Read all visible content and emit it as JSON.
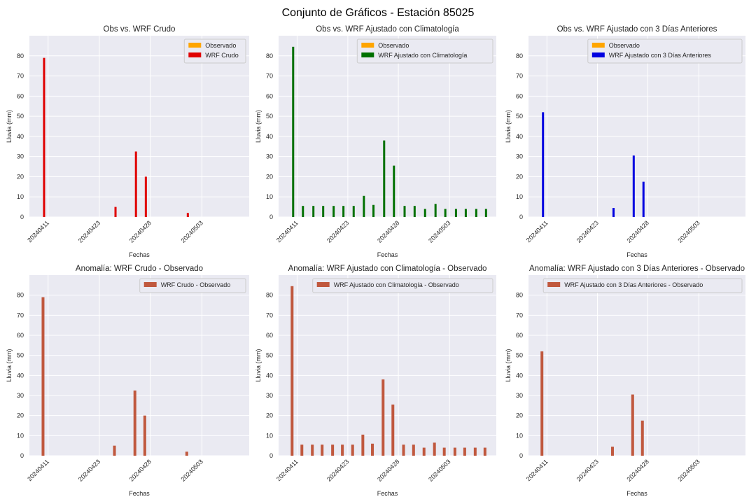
{
  "figure": {
    "title": "Conjunto de Gráficos - Estación 85025"
  },
  "colors": {
    "panel_bg": "#eaeaf2",
    "grid": "#ffffff",
    "observado": "#ffa500",
    "crudo": "#e00000",
    "climatologia": "#007000",
    "tres_dias": "#0000e0",
    "anomalia": "#c0583e",
    "text": "#262626"
  },
  "chart_data": [
    {
      "type": "bar",
      "title": "Obs vs. WRF Crudo",
      "xlabel": "Fechas",
      "ylabel": "Lluvia (mm)",
      "ylim": [
        0,
        90
      ],
      "yticks": [
        0,
        10,
        20,
        30,
        40,
        50,
        60,
        70,
        80
      ],
      "xticks": [
        "20240411",
        "20240423",
        "20240428",
        "20240503"
      ],
      "grid": true,
      "legend_position": "top-right",
      "series": [
        {
          "name": "Observado",
          "color": "#ffa500",
          "values": [
            0,
            0,
            0,
            0,
            0,
            0,
            0,
            0,
            0,
            0,
            0,
            0,
            0,
            0,
            0,
            0,
            0,
            0,
            0,
            0
          ]
        },
        {
          "name": "WRF Crudo",
          "color": "#e00000",
          "values": [
            79,
            0,
            0,
            0,
            0,
            0,
            0,
            5,
            0,
            32.5,
            20,
            0,
            0,
            0,
            2,
            0,
            0,
            0,
            0,
            0
          ]
        }
      ]
    },
    {
      "type": "bar",
      "title": "Obs vs. WRF Ajustado con Climatología",
      "xlabel": "Fechas",
      "ylabel": "Lluvia (mm)",
      "ylim": [
        0,
        90
      ],
      "yticks": [
        0,
        10,
        20,
        30,
        40,
        50,
        60,
        70,
        80
      ],
      "xticks": [
        "20240411",
        "20240423",
        "20240428",
        "20240503"
      ],
      "grid": true,
      "legend_position": "top-right",
      "series": [
        {
          "name": "Observado",
          "color": "#ffa500",
          "values": [
            0,
            0,
            0,
            0,
            0,
            0,
            0,
            0,
            0,
            0,
            0,
            0,
            0,
            0,
            0,
            0,
            0,
            0,
            0,
            0
          ]
        },
        {
          "name": "WRF Ajustado con Climatología",
          "color": "#007000",
          "values": [
            84.5,
            5.5,
            5.5,
            5.5,
            5.5,
            5.5,
            5.5,
            10.5,
            6,
            38,
            25.5,
            5.5,
            5.5,
            4,
            6.5,
            4,
            4,
            4,
            4,
            4
          ]
        }
      ]
    },
    {
      "type": "bar",
      "title": "Obs vs. WRF Ajustado con 3 Días Anteriores",
      "xlabel": "Fechas",
      "ylabel": "Lluvia (mm)",
      "ylim": [
        0,
        90
      ],
      "yticks": [
        0,
        10,
        20,
        30,
        40,
        50,
        60,
        70,
        80
      ],
      "xticks": [
        "20240411",
        "20240423",
        "20240428",
        "20240503"
      ],
      "grid": true,
      "legend_position": "top-right",
      "series": [
        {
          "name": "Observado",
          "color": "#ffa500",
          "values": [
            0,
            0,
            0,
            0,
            0,
            0,
            0,
            0,
            0,
            0,
            0,
            0,
            0,
            0,
            0,
            0,
            0,
            0,
            0,
            0
          ]
        },
        {
          "name": "WRF Ajustado con 3 Días Anteriores",
          "color": "#0000e0",
          "values": [
            52,
            0,
            0,
            0,
            0,
            0,
            0,
            4.5,
            0,
            30.5,
            17.5,
            0,
            0,
            0,
            0,
            0,
            0,
            0,
            0,
            0
          ]
        }
      ]
    },
    {
      "type": "bar",
      "title": "Anomalía: WRF Crudo - Observado",
      "xlabel": "Fechas",
      "ylabel": "Lluvia (mm)",
      "ylim": [
        0,
        90
      ],
      "yticks": [
        0,
        10,
        20,
        30,
        40,
        50,
        60,
        70,
        80
      ],
      "xticks": [
        "20240411",
        "20240423",
        "20240428",
        "20240503"
      ],
      "grid": true,
      "legend_position": "top-right",
      "series": [
        {
          "name": "WRF Crudo - Observado",
          "color": "#c0583e",
          "values": [
            79,
            0,
            0,
            0,
            0,
            0,
            0,
            5,
            0,
            32.5,
            20,
            0,
            0,
            0,
            2,
            0,
            0,
            0,
            0,
            0
          ]
        }
      ]
    },
    {
      "type": "bar",
      "title": "Anomalía: WRF Ajustado con Climatología - Observado",
      "xlabel": "Fechas",
      "ylabel": "Lluvia (mm)",
      "ylim": [
        0,
        90
      ],
      "yticks": [
        0,
        10,
        20,
        30,
        40,
        50,
        60,
        70,
        80
      ],
      "xticks": [
        "20240411",
        "20240423",
        "20240428",
        "20240503"
      ],
      "grid": true,
      "legend_position": "top-right",
      "series": [
        {
          "name": "WRF Ajustado con Climatología - Observado",
          "color": "#c0583e",
          "values": [
            84.5,
            5.5,
            5.5,
            5.5,
            5.5,
            5.5,
            5.5,
            10.5,
            6,
            38,
            25.5,
            5.5,
            5.5,
            4,
            6.5,
            4,
            4,
            4,
            4,
            4
          ]
        }
      ]
    },
    {
      "type": "bar",
      "title": "Anomalía: WRF Ajustado con 3 Días Anteriores - Observado",
      "xlabel": "Fechas",
      "ylabel": "Lluvia (mm)",
      "ylim": [
        0,
        90
      ],
      "yticks": [
        0,
        10,
        20,
        30,
        40,
        50,
        60,
        70,
        80
      ],
      "xticks": [
        "20240411",
        "20240423",
        "20240428",
        "20240503"
      ],
      "grid": true,
      "legend_position": "top-right",
      "series": [
        {
          "name": "WRF Ajustado con 3 Días Anteriores - Observado",
          "color": "#c0583e",
          "values": [
            52,
            0,
            0,
            0,
            0,
            0,
            0,
            4.5,
            0,
            30.5,
            17.5,
            0,
            0,
            0,
            0,
            0,
            0,
            0,
            0,
            0
          ]
        }
      ]
    }
  ]
}
